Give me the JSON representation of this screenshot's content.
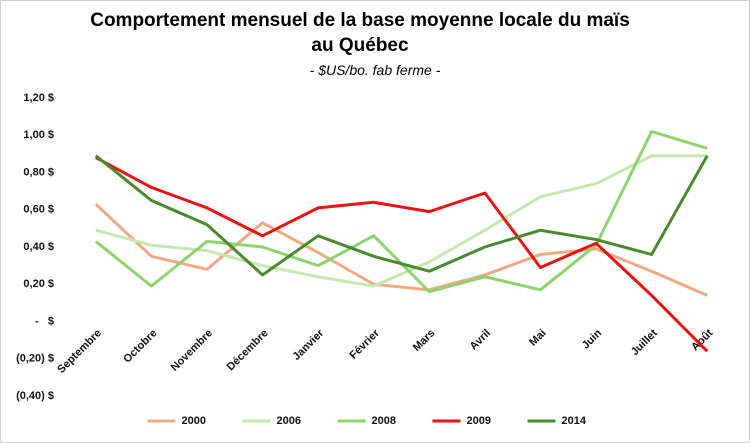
{
  "chart_data": {
    "type": "line",
    "title": "Comportement mensuel  de la base moyenne locale du maïs au Québec",
    "subtitle": "- $US/bo. fab ferme -",
    "categories": [
      "Septembre",
      "Octobre",
      "Novembre",
      "Décembre",
      "Janvier",
      "Février",
      "Mars",
      "Avril",
      "Mai",
      "Juin",
      "Juillet",
      "Août"
    ],
    "series": [
      {
        "name": "2000",
        "color": "#f1a983",
        "values": [
          0.63,
          0.35,
          0.28,
          0.53,
          0.37,
          0.2,
          0.17,
          0.25,
          0.36,
          0.39,
          0.27,
          0.14
        ]
      },
      {
        "name": "2006",
        "color": "#c6e8b0",
        "values": [
          0.49,
          0.41,
          0.38,
          0.3,
          0.24,
          0.19,
          0.32,
          0.49,
          0.67,
          0.74,
          0.89,
          0.89
        ]
      },
      {
        "name": "2008",
        "color": "#8fd36e",
        "values": [
          0.43,
          0.19,
          0.43,
          0.4,
          0.3,
          0.46,
          0.16,
          0.24,
          0.17,
          0.41,
          1.02,
          0.93
        ]
      },
      {
        "name": "2009",
        "color": "#ee1111",
        "values": [
          0.88,
          0.72,
          0.61,
          0.46,
          0.61,
          0.64,
          0.59,
          0.69,
          0.29,
          0.42,
          0.14,
          -0.16
        ]
      },
      {
        "name": "2014",
        "color": "#4a8a2e",
        "values": [
          0.89,
          0.65,
          0.52,
          0.25,
          0.46,
          0.35,
          0.27,
          0.4,
          0.49,
          0.44,
          0.36,
          0.89
        ]
      }
    ],
    "ylim": [
      -0.4,
      1.2
    ],
    "yticks": [
      {
        "value": -0.4,
        "label": "(0,40) $"
      },
      {
        "value": -0.2,
        "label": "(0,20) $"
      },
      {
        "value": 0,
        "label": "-   $"
      },
      {
        "value": 0.2,
        "label": "0,20 $"
      },
      {
        "value": 0.4,
        "label": "0,40 $"
      },
      {
        "value": 0.6,
        "label": "0,60 $"
      },
      {
        "value": 0.8,
        "label": "0,80 $"
      },
      {
        "value": 1.0,
        "label": "1,00 $"
      },
      {
        "value": 1.2,
        "label": "1,20 $"
      }
    ],
    "grid": false,
    "legend": "bottom"
  }
}
